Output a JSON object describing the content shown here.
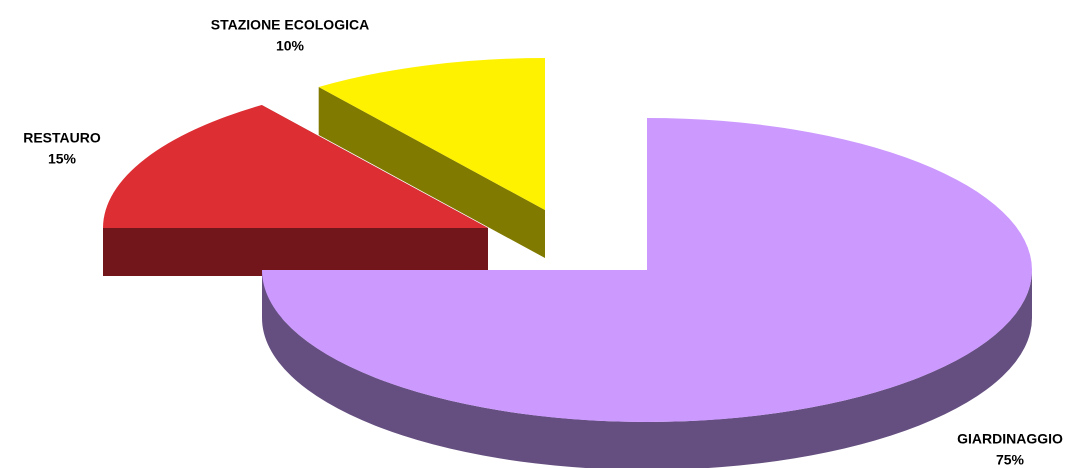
{
  "chart_data": {
    "type": "pie",
    "categories": [
      "GIARDINAGGIO",
      "RESTAURO",
      "STAZIONE ECOLOGICA"
    ],
    "values": [
      75,
      15,
      10
    ],
    "value_labels": [
      "75%",
      "15%",
      "10%"
    ],
    "colors": [
      "#cc99ff",
      "#dd2e33",
      "#fff200"
    ],
    "side_colors": [
      "#654f80",
      "#73161b",
      "#807a00"
    ]
  }
}
